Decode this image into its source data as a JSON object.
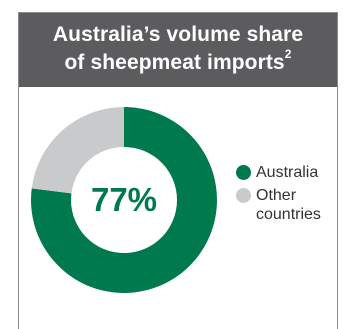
{
  "header": {
    "line1": "Australia’s volume share",
    "line2": "of sheepmeat imports",
    "footnote_ref": "2"
  },
  "chart_data": {
    "type": "pie",
    "donut": true,
    "center_label": "77%",
    "slices": [
      {
        "label": "Australia",
        "value": 77,
        "color": "#007a4d"
      },
      {
        "label": "Other countries",
        "value": 23,
        "color": "#c9cacc"
      }
    ],
    "legend_position": "right"
  },
  "legend": {
    "items": [
      {
        "label": "Australia",
        "color": "#007a4d"
      },
      {
        "label": "Other countries",
        "color": "#c9cacc"
      }
    ]
  }
}
